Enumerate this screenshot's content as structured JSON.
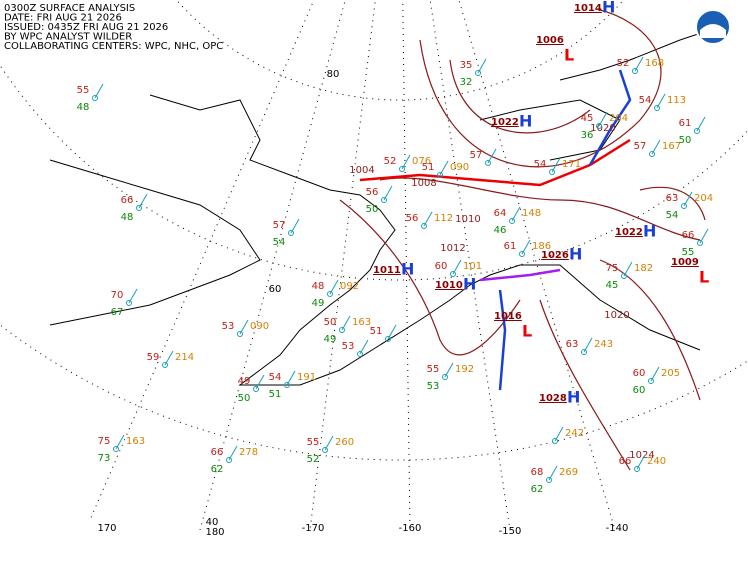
{
  "header": {
    "lines": [
      "0300Z SURFACE ANALYSIS",
      "DATE: FRI AUG 21 2026",
      "ISSUED: 0435Z FRI AUG 21 2026",
      "BY WPC ANALYST WILDER",
      "COLLABORATING CENTERS: WPC, NHC, OPC"
    ]
  },
  "grid_labels": [
    "80",
    "60",
    "40",
    "170",
    "180",
    "-170",
    "-160",
    "-150",
    "-140"
  ],
  "pressure_centers": [
    {
      "symbol": "H",
      "pressure": "1022"
    },
    {
      "symbol": "L",
      "pressure": "1006"
    },
    {
      "symbol": "H",
      "pressure": "1014"
    },
    {
      "symbol": "H",
      "pressure": "1011"
    },
    {
      "symbol": "H",
      "pressure": "1010"
    },
    {
      "symbol": "L",
      "pressure": "1016"
    },
    {
      "symbol": "H",
      "pressure": "1028"
    },
    {
      "symbol": "H",
      "pressure": "1022"
    },
    {
      "symbol": "H",
      "pressure": "1026"
    },
    {
      "symbol": "L",
      "pressure": "1009"
    }
  ],
  "isobar_labels": [
    "1004",
    "1008",
    "1010",
    "1012",
    "1020",
    "1024",
    "1020"
  ],
  "stations": [
    {
      "temperature": 55,
      "dewpoint": 48
    },
    {
      "temperature": 66,
      "dewpoint": 48
    },
    {
      "temperature": 70,
      "dewpoint": 67
    },
    {
      "temperature": 53,
      "pressure": "090"
    },
    {
      "temperature": 59,
      "pressure": "214"
    },
    {
      "temperature": 75,
      "pressure": "163",
      "dewpoint": 73
    },
    {
      "temperature": 66,
      "pressure": "278",
      "dewpoint": 62
    },
    {
      "temperature": 55,
      "pressure": "260",
      "dewpoint": 52
    },
    {
      "temperature": 49,
      "dewpoint": 50
    },
    {
      "temperature": 54,
      "pressure": "191",
      "dewpoint": 51
    },
    {
      "temperature": 57,
      "dewpoint": 54
    },
    {
      "temperature": 48,
      "pressure": "092",
      "dewpoint": 49
    },
    {
      "temperature": 50,
      "pressure": "163",
      "dewpoint": 49
    },
    {
      "temperature": 53
    },
    {
      "temperature": 51
    },
    {
      "temperature": 55,
      "pressure": "192",
      "dewpoint": 53
    },
    {
      "pressure": "242"
    },
    {
      "temperature": 68,
      "pressure": "269",
      "dewpoint": 62
    },
    {
      "temperature": 66,
      "pressure": "240"
    },
    {
      "temperature": 60,
      "pressure": "205",
      "dewpoint": 60
    },
    {
      "temperature": 63,
      "pressure": "243"
    },
    {
      "temperature": 75,
      "pressure": "182",
      "dewpoint": 45
    },
    {
      "temperature": 63,
      "pressure": "204",
      "dewpoint": 54
    },
    {
      "temperature": 66,
      "dewpoint": 55
    },
    {
      "temperature": 56,
      "pressure": "112"
    },
    {
      "temperature": 64,
      "pressure": "148",
      "dewpoint": 46
    },
    {
      "temperature": 61,
      "pressure": "186"
    },
    {
      "temperature": 60,
      "pressure": "101"
    },
    {
      "temperature": 54,
      "pressure": "171"
    },
    {
      "temperature": 57
    },
    {
      "temperature": 52,
      "pressure": "076"
    },
    {
      "temperature": 51,
      "pressure": "090"
    },
    {
      "temperature": 56,
      "dewpoint": 50
    },
    {
      "temperature": 57,
      "pressure": "167"
    },
    {
      "temperature": 54,
      "pressure": "113"
    },
    {
      "temperature": 52,
      "pressure": "168"
    },
    {
      "temperature": 61,
      "dewpoint": 50
    },
    {
      "temperature": 35,
      "dewpoint": 32
    },
    {
      "temperature": 45,
      "pressure": "204",
      "dewpoint": 36
    }
  ]
}
